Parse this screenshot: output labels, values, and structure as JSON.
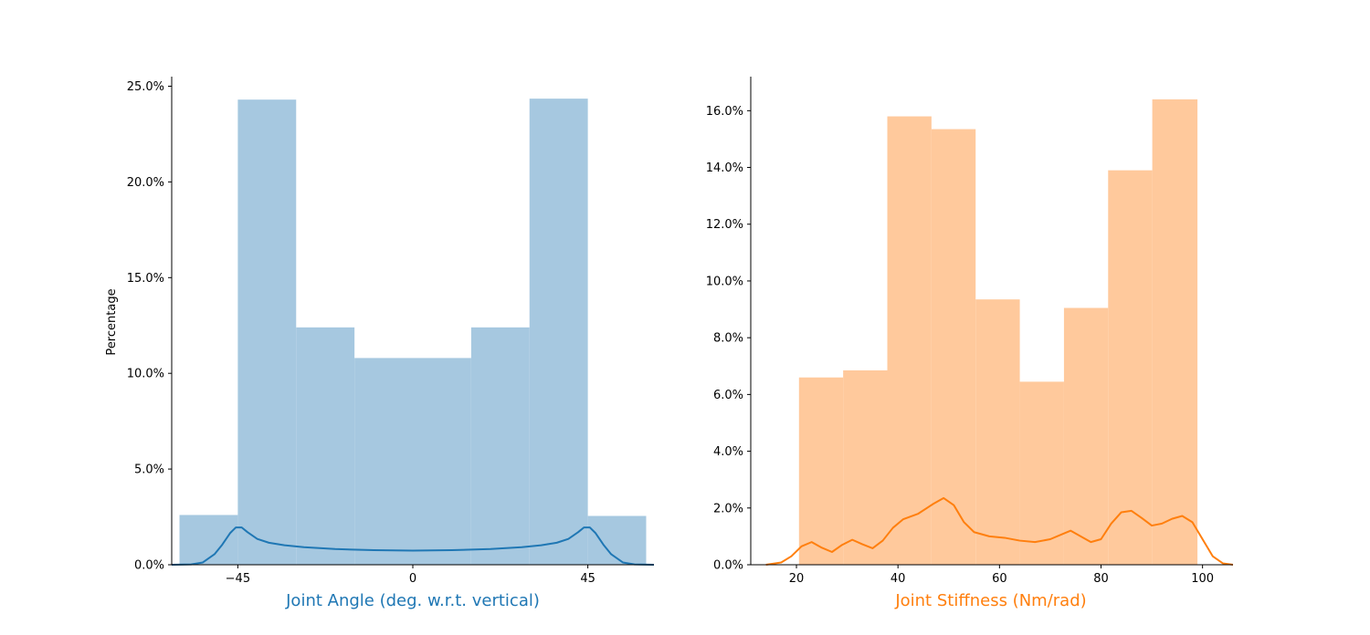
{
  "chart_data": [
    {
      "type": "histogram",
      "xlabel": "Joint Angle (deg. w.r.t. vertical)",
      "ylabel": "Percentage",
      "color": "#1f77b4",
      "bar_fill": "#a6c8e0",
      "xlim": [
        -62,
        62
      ],
      "ylim": [
        0,
        25.5
      ],
      "xticks": [
        -45,
        0,
        45
      ],
      "xtick_labels": [
        "−45",
        "0",
        "45"
      ],
      "yticks": [
        0,
        5,
        10,
        15,
        20,
        25
      ],
      "ytick_labels": [
        "0.0%",
        "5.0%",
        "10.0%",
        "15.0%",
        "20.0%",
        "25.0%"
      ],
      "bins": [
        {
          "start": -60,
          "end": -45,
          "value": 2.6
        },
        {
          "start": -45,
          "end": -30,
          "value": 24.3
        },
        {
          "start": -30,
          "end": -15,
          "value": 12.4
        },
        {
          "start": -15,
          "end": 0,
          "value": 10.8
        },
        {
          "start": 0,
          "end": 15,
          "value": 10.8
        },
        {
          "start": 15,
          "end": 30,
          "value": 12.4
        },
        {
          "start": 30,
          "end": 45,
          "value": 24.35
        },
        {
          "start": 45,
          "end": 60,
          "value": 2.55
        }
      ],
      "kde": {
        "x": [
          -62,
          -57,
          -54,
          -51,
          -49,
          -47,
          -45.5,
          -44,
          -42.5,
          -40,
          -37,
          -33,
          -28,
          -20,
          -10,
          0,
          10,
          20,
          28,
          33,
          37,
          40,
          42.5,
          44,
          45.5,
          47,
          49,
          51,
          54,
          57,
          62
        ],
        "y": [
          0,
          0.02,
          0.12,
          0.55,
          1.05,
          1.65,
          1.95,
          1.95,
          1.7,
          1.35,
          1.15,
          1.02,
          0.92,
          0.82,
          0.76,
          0.74,
          0.76,
          0.82,
          0.92,
          1.02,
          1.15,
          1.35,
          1.7,
          1.95,
          1.95,
          1.65,
          1.05,
          0.55,
          0.12,
          0.02,
          0
        ]
      }
    },
    {
      "type": "histogram",
      "xlabel": "Joint Stiffness (Nm/rad)",
      "color": "#ff7f0e",
      "bar_fill": "#ffc99c",
      "xlim": [
        11,
        106
      ],
      "ylim": [
        0,
        17.2
      ],
      "xticks": [
        20,
        40,
        60,
        80,
        100
      ],
      "xtick_labels": [
        "20",
        "40",
        "60",
        "80",
        "100"
      ],
      "yticks": [
        0,
        2,
        4,
        6,
        8,
        10,
        12,
        14,
        16
      ],
      "ytick_labels": [
        "0.0%",
        "2.0%",
        "4.0%",
        "6.0%",
        "8.0%",
        "10.0%",
        "12.0%",
        "14.0%",
        "16.0%"
      ],
      "bins": [
        {
          "start": 20.5,
          "end": 29.2,
          "value": 6.6
        },
        {
          "start": 29.2,
          "end": 37.9,
          "value": 6.85
        },
        {
          "start": 37.9,
          "end": 46.6,
          "value": 15.8
        },
        {
          "start": 46.6,
          "end": 55.3,
          "value": 15.35
        },
        {
          "start": 55.3,
          "end": 64.0,
          "value": 9.35
        },
        {
          "start": 64.0,
          "end": 72.7,
          "value": 6.45
        },
        {
          "start": 72.7,
          "end": 81.4,
          "value": 9.05
        },
        {
          "start": 81.4,
          "end": 90.1,
          "value": 13.9
        },
        {
          "start": 90.1,
          "end": 99.0,
          "value": 16.4
        }
      ],
      "kde": {
        "x": [
          14,
          17,
          19,
          21,
          23,
          25,
          27,
          29,
          31,
          33,
          35,
          37,
          39,
          41,
          44,
          47,
          49,
          51,
          53,
          55,
          58,
          61,
          64,
          67,
          70,
          72,
          74,
          76,
          78,
          80,
          82,
          84,
          86,
          88,
          90,
          92,
          94,
          96,
          98,
          100,
          102,
          104,
          106
        ],
        "y": [
          0,
          0.08,
          0.3,
          0.65,
          0.8,
          0.6,
          0.45,
          0.7,
          0.88,
          0.72,
          0.58,
          0.85,
          1.3,
          1.6,
          1.8,
          2.15,
          2.35,
          2.1,
          1.5,
          1.15,
          1.0,
          0.95,
          0.85,
          0.8,
          0.9,
          1.05,
          1.2,
          1.0,
          0.8,
          0.9,
          1.45,
          1.85,
          1.9,
          1.65,
          1.38,
          1.45,
          1.62,
          1.72,
          1.5,
          0.9,
          0.3,
          0.05,
          0
        ]
      }
    }
  ]
}
